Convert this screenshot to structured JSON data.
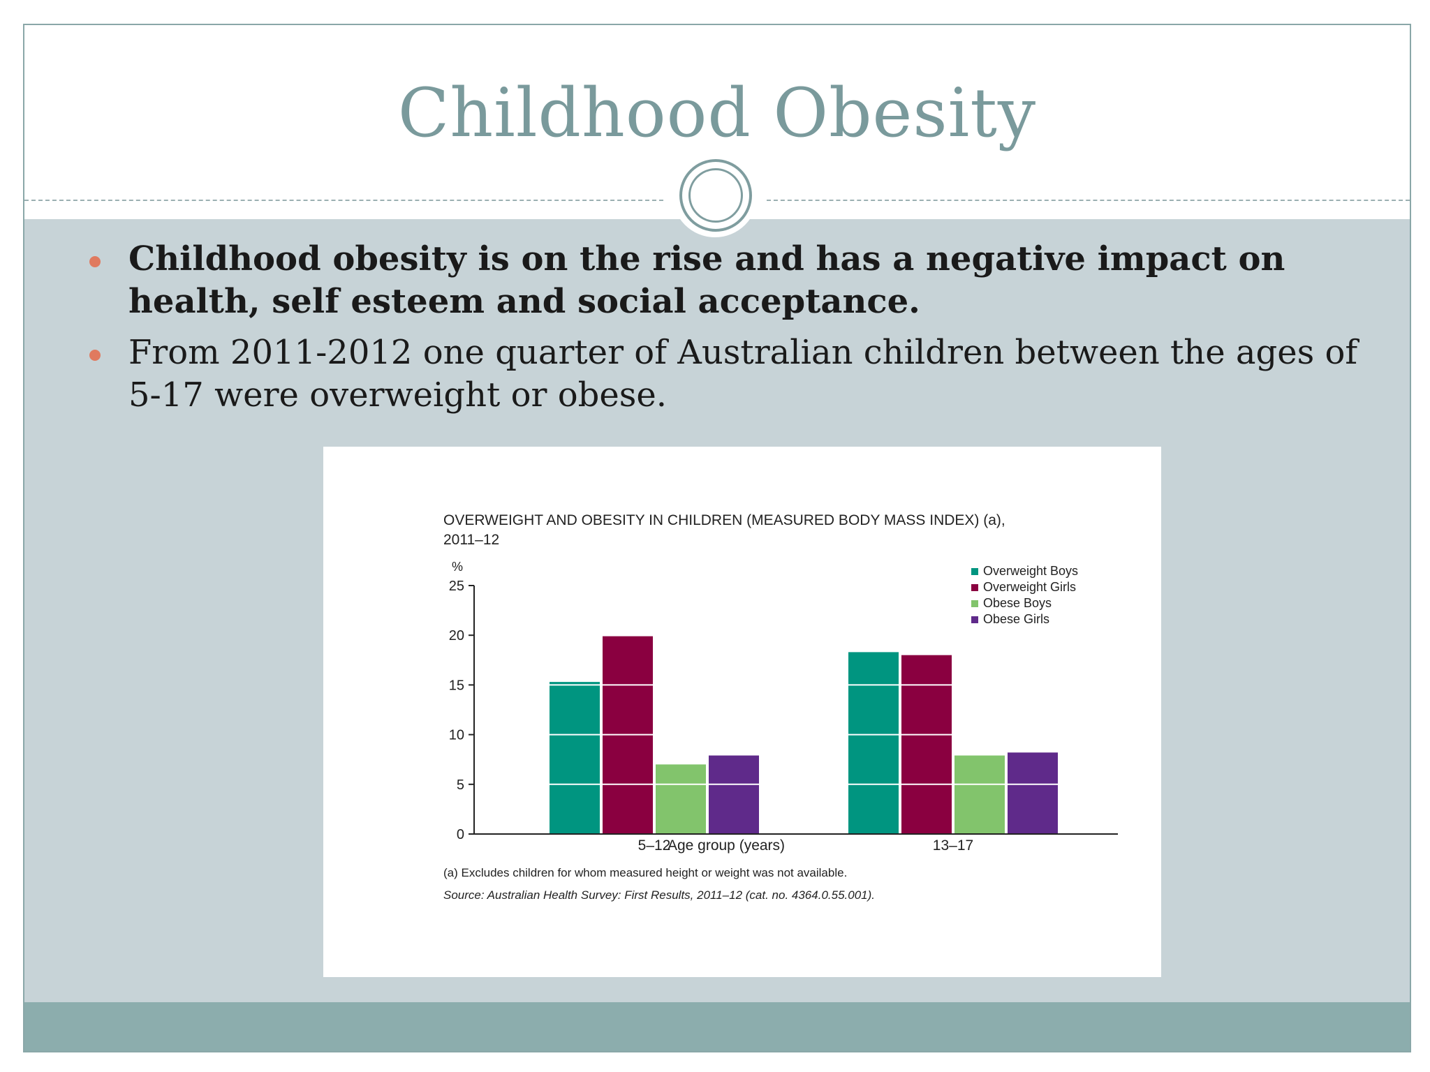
{
  "slide": {
    "title": "Childhood Obesity",
    "bullets": [
      "Childhood obesity is on the rise and has a negative impact on health, self esteem and social acceptance.",
      "From 2011-2012 one quarter of Australian children between the ages of 5-17 were overweight or obese."
    ],
    "colors": {
      "title": "#7a9a9c",
      "bullet_dot": "#e07a5f",
      "body_bg": "#c7d3d7",
      "footer": "#8cadad"
    }
  },
  "chart_data": {
    "type": "bar",
    "title_line1": "OVERWEIGHT AND OBESITY IN CHILDREN  (MEASURED BODY MASS INDEX) (a),",
    "title_line2": "2011–12",
    "yunit": "%",
    "xlabel": "Age group (years)",
    "categories": [
      "5–12",
      "13–17"
    ],
    "ylim": [
      0,
      25
    ],
    "yticks": [
      0,
      5,
      10,
      15,
      20,
      25
    ],
    "grid_lines": "white, drawn across bars",
    "legend_position": "top-right",
    "series": [
      {
        "name": "Overweight Boys",
        "color": "#009580",
        "values": [
          15.3,
          18.3
        ]
      },
      {
        "name": "Overweight Girls",
        "color": "#8a0040",
        "values": [
          19.9,
          18.0
        ]
      },
      {
        "name": "Obese Boys",
        "color": "#82c46c",
        "values": [
          7.0,
          7.9
        ]
      },
      {
        "name": "Obese Girls",
        "color": "#5f2a8a",
        "values": [
          7.9,
          8.2
        ]
      }
    ],
    "footnote": "(a) Excludes children for whom measured height or weight was not available.",
    "source": "Source: Australian Health Survey: First Results, 2011–12 (cat. no. 4364.0.55.001)."
  }
}
